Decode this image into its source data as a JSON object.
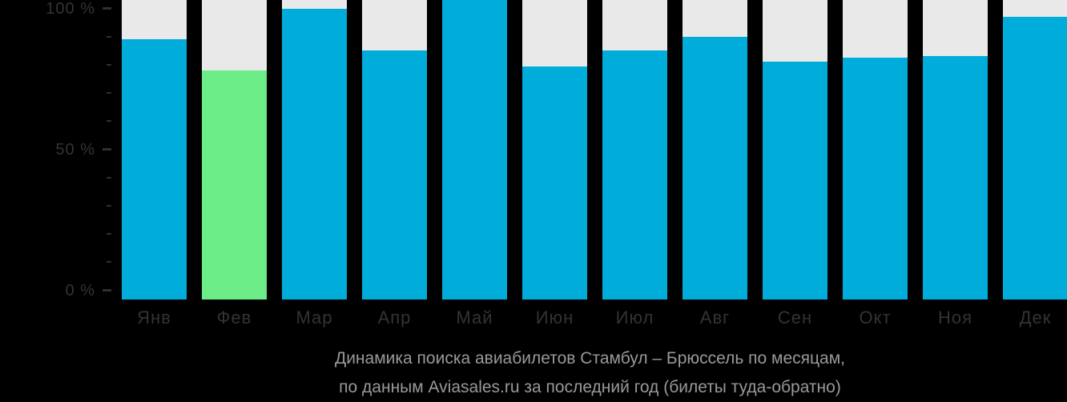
{
  "chart_data": {
    "type": "bar",
    "title": "Динамика поиска авиабилетов Стамбул – Брюссель по месяцам,",
    "subtitle": "по данным Aviasales.ru за последний год (билеты туда-обратно)",
    "categories": [
      "Янв",
      "Фев",
      "Мар",
      "Апр",
      "Май",
      "Июн",
      "Июл",
      "Авг",
      "Сен",
      "Окт",
      "Ноя",
      "Дек"
    ],
    "values": [
      89,
      78,
      100,
      85,
      103,
      79.5,
      85,
      90,
      81,
      82.5,
      83,
      97
    ],
    "unit": "%",
    "highlight_index": 1,
    "xlabel": "",
    "ylabel": "",
    "ylim": [
      0,
      100
    ],
    "y_axis": {
      "minor_step": 10,
      "ticks": [
        {
          "value": 100,
          "label": "100 %"
        },
        {
          "value": 50,
          "label": "50 %"
        },
        {
          "value": 0,
          "label": "0 %"
        }
      ]
    },
    "legend": "none",
    "grid": "off",
    "colors": {
      "background": "#000000",
      "bar": "#00ACD9",
      "highlight_bar": "#6CEC86",
      "column_bg": "#E9E9E9",
      "axis_text": "#333333",
      "tick_mark": "#303030",
      "month_text": "#333333",
      "caption_text": "#999999"
    }
  }
}
